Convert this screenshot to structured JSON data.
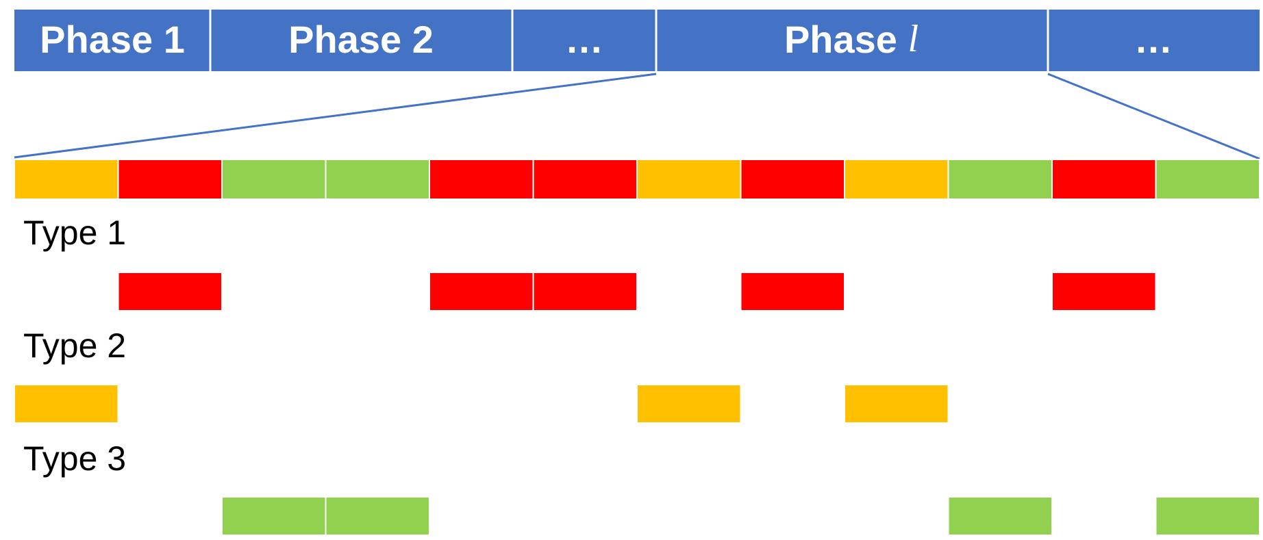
{
  "colors": {
    "phase_bar": "#4472C4",
    "type_1": "#FF0000",
    "type_2": "#FFC000",
    "type_3": "#92D050",
    "connector": "#4472C4",
    "divider": "#FFFFFF"
  },
  "phases": [
    {
      "label": "Phase 1",
      "variable": ""
    },
    {
      "label": "Phase 2",
      "variable": ""
    },
    {
      "label": "…",
      "variable": ""
    },
    {
      "label": "Phase ",
      "variable": "l"
    },
    {
      "label": "…",
      "variable": ""
    }
  ],
  "zoomed_phase": "Phase l",
  "sequence": [
    2,
    1,
    3,
    3,
    1,
    1,
    2,
    1,
    2,
    3,
    1,
    3
  ],
  "types": [
    {
      "id": 1,
      "label": "Type 1"
    },
    {
      "id": 2,
      "label": "Type 2"
    },
    {
      "id": 3,
      "label": "Type 3"
    }
  ]
}
